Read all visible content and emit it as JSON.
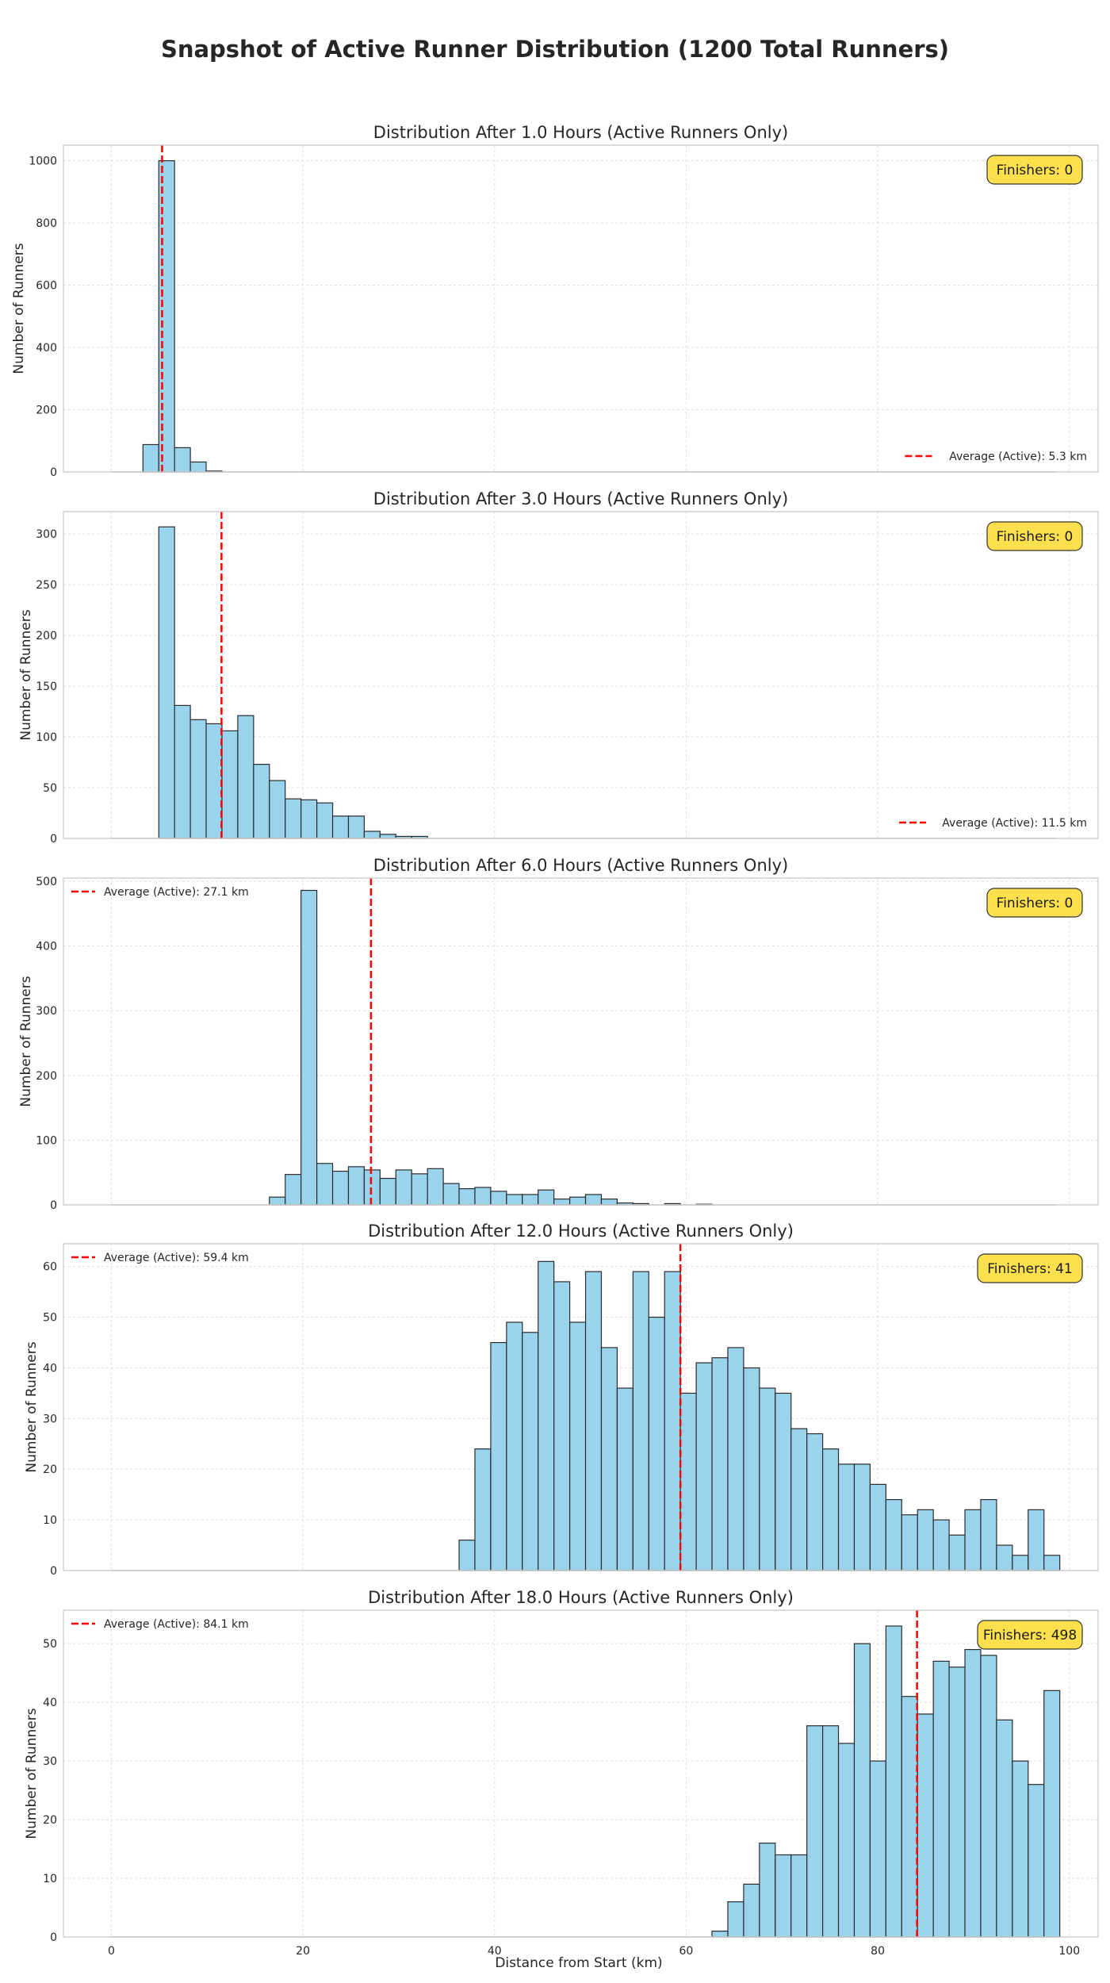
{
  "figure": {
    "suptitle": "Snapshot of Active Runner Distribution (1200 Total Runners)",
    "xlabel": "Distance from Start (km)",
    "ylabel": "Number of Runners"
  },
  "colors": {
    "bar_fill": "#9ad3ec",
    "bar_edge": "#2b2b2b",
    "mean_line": "#ff0000",
    "badge_fill": "#fde04b",
    "grid": "#dddddd",
    "spine": "#c8c8c8",
    "text": "#262626"
  },
  "chart_data": [
    {
      "type": "histogram",
      "title": "Distribution After 1.0 Hours (Active Runners Only)",
      "finishers_label": "Finishers: 0",
      "legend_label": "Average (Active): 5.3 km",
      "legend_position": "lower-right",
      "mean_km": 5.3,
      "xlim": [
        -5,
        103
      ],
      "ylim": [
        0,
        1050
      ],
      "yticks": [
        0,
        200,
        400,
        600,
        800,
        1000
      ],
      "xticks": [
        0,
        20,
        40,
        60,
        80,
        100
      ],
      "show_xticklabels": false,
      "bin_width": 1.65,
      "bins": [
        [
          3.3,
          88
        ],
        [
          4.95,
          1000
        ],
        [
          6.6,
          78
        ],
        [
          8.25,
          32
        ],
        [
          9.9,
          3
        ]
      ]
    },
    {
      "type": "histogram",
      "title": "Distribution After 3.0 Hours (Active Runners Only)",
      "finishers_label": "Finishers: 0",
      "legend_label": "Average (Active): 11.5 km",
      "legend_position": "lower-right",
      "mean_km": 11.5,
      "xlim": [
        -5,
        103
      ],
      "ylim": [
        0,
        322
      ],
      "yticks": [
        0,
        50,
        100,
        150,
        200,
        250,
        300
      ],
      "xticks": [
        0,
        20,
        40,
        60,
        80,
        100
      ],
      "show_xticklabels": false,
      "bin_width": 1.65,
      "bins": [
        [
          4.95,
          307
        ],
        [
          6.6,
          131
        ],
        [
          8.25,
          117
        ],
        [
          9.9,
          113
        ],
        [
          11.55,
          106
        ],
        [
          13.2,
          121
        ],
        [
          14.85,
          73
        ],
        [
          16.5,
          57
        ],
        [
          18.15,
          39
        ],
        [
          19.8,
          38
        ],
        [
          21.45,
          35
        ],
        [
          23.1,
          22
        ],
        [
          24.75,
          22
        ],
        [
          26.4,
          7
        ],
        [
          28.05,
          4
        ],
        [
          29.7,
          2
        ],
        [
          31.35,
          2
        ]
      ]
    },
    {
      "type": "histogram",
      "title": "Distribution After 6.0 Hours (Active Runners Only)",
      "finishers_label": "Finishers: 0",
      "legend_label": "Average (Active): 27.1 km",
      "legend_position": "upper-left",
      "mean_km": 27.1,
      "xlim": [
        -5,
        103
      ],
      "ylim": [
        0,
        505
      ],
      "yticks": [
        0,
        100,
        200,
        300,
        400,
        500
      ],
      "xticks": [
        0,
        20,
        40,
        60,
        80,
        100
      ],
      "show_xticklabels": false,
      "bin_width": 1.65,
      "bins": [
        [
          16.5,
          12
        ],
        [
          18.15,
          47
        ],
        [
          19.8,
          486
        ],
        [
          21.45,
          64
        ],
        [
          23.1,
          52
        ],
        [
          24.75,
          59
        ],
        [
          26.4,
          54
        ],
        [
          28.05,
          41
        ],
        [
          29.7,
          54
        ],
        [
          31.35,
          48
        ],
        [
          33.0,
          56
        ],
        [
          34.65,
          33
        ],
        [
          36.3,
          25
        ],
        [
          37.95,
          27
        ],
        [
          39.6,
          21
        ],
        [
          41.25,
          16
        ],
        [
          42.9,
          16
        ],
        [
          44.55,
          23
        ],
        [
          46.2,
          9
        ],
        [
          47.85,
          12
        ],
        [
          49.5,
          16
        ],
        [
          51.15,
          9
        ],
        [
          52.8,
          3
        ],
        [
          54.45,
          2
        ],
        [
          57.75,
          2
        ],
        [
          61.05,
          1
        ]
      ]
    },
    {
      "type": "histogram",
      "title": "Distribution After 12.0 Hours (Active Runners Only)",
      "finishers_label": "Finishers: 41",
      "legend_label": "Average (Active): 59.4 km",
      "legend_position": "upper-left",
      "mean_km": 59.4,
      "xlim": [
        -5,
        103
      ],
      "ylim": [
        0,
        64.5
      ],
      "yticks": [
        0,
        10,
        20,
        30,
        40,
        50,
        60
      ],
      "xticks": [
        0,
        20,
        40,
        60,
        80,
        100
      ],
      "show_xticklabels": false,
      "bin_width": 1.65,
      "bins": [
        [
          36.3,
          6
        ],
        [
          37.95,
          24
        ],
        [
          39.6,
          45
        ],
        [
          41.25,
          49
        ],
        [
          42.9,
          47
        ],
        [
          44.55,
          61
        ],
        [
          46.2,
          57
        ],
        [
          47.85,
          49
        ],
        [
          49.5,
          59
        ],
        [
          51.15,
          44
        ],
        [
          52.8,
          36
        ],
        [
          54.45,
          59
        ],
        [
          56.1,
          50
        ],
        [
          57.75,
          59
        ],
        [
          59.4,
          35
        ],
        [
          61.05,
          41
        ],
        [
          62.7,
          42
        ],
        [
          64.35,
          44
        ],
        [
          66.0,
          40
        ],
        [
          67.65,
          36
        ],
        [
          69.3,
          35
        ],
        [
          70.95,
          28
        ],
        [
          72.6,
          27
        ],
        [
          74.25,
          24
        ],
        [
          75.9,
          21
        ],
        [
          77.55,
          21
        ],
        [
          79.2,
          17
        ],
        [
          80.85,
          14
        ],
        [
          82.5,
          11
        ],
        [
          84.15,
          12
        ],
        [
          85.8,
          10
        ],
        [
          87.45,
          7
        ],
        [
          89.1,
          12
        ],
        [
          90.75,
          14
        ],
        [
          92.4,
          5
        ],
        [
          94.05,
          3
        ],
        [
          95.7,
          12
        ],
        [
          97.35,
          3
        ]
      ]
    },
    {
      "type": "histogram",
      "title": "Distribution After 18.0 Hours (Active Runners Only)",
      "finishers_label": "Finishers: 498",
      "legend_label": "Average (Active): 84.1 km",
      "legend_position": "upper-left",
      "mean_km": 84.1,
      "xlim": [
        -5,
        103
      ],
      "ylim": [
        0,
        55.7
      ],
      "yticks": [
        0,
        10,
        20,
        30,
        40,
        50
      ],
      "xticks": [
        0,
        20,
        40,
        60,
        80,
        100
      ],
      "show_xticklabels": true,
      "bin_width": 1.65,
      "bins": [
        [
          62.7,
          1
        ],
        [
          64.35,
          6
        ],
        [
          66.0,
          9
        ],
        [
          67.65,
          16
        ],
        [
          69.3,
          14
        ],
        [
          70.95,
          14
        ],
        [
          72.6,
          36
        ],
        [
          74.25,
          36
        ],
        [
          75.9,
          33
        ],
        [
          77.55,
          50
        ],
        [
          79.2,
          30
        ],
        [
          80.85,
          53
        ],
        [
          82.5,
          41
        ],
        [
          84.15,
          38
        ],
        [
          85.8,
          47
        ],
        [
          87.45,
          46
        ],
        [
          89.1,
          49
        ],
        [
          90.75,
          48
        ],
        [
          92.4,
          37
        ],
        [
          94.05,
          30
        ],
        [
          95.7,
          26
        ],
        [
          97.35,
          42
        ]
      ]
    }
  ]
}
